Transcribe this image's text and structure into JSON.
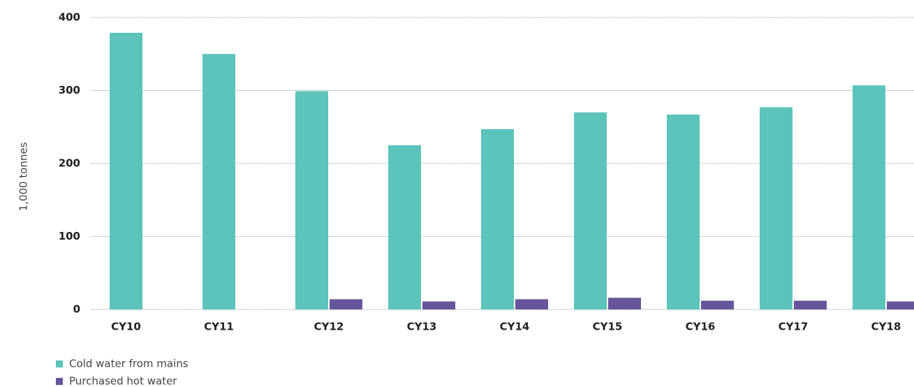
{
  "chart_data": {
    "type": "bar",
    "y_label": "1,000 tonnes",
    "categories": [
      "CY10",
      "CY11",
      "CY12",
      "CY13",
      "CY14",
      "CY15",
      "CY16",
      "CY17",
      "CY18"
    ],
    "series": [
      {
        "name": "Cold water from mains",
        "color": "#5cc4bb",
        "values": [
          379,
          350,
          299,
          225,
          247,
          270,
          267,
          277,
          307
        ]
      },
      {
        "name": "Purchased hot water",
        "color": "#67559b",
        "values": [
          null,
          null,
          14,
          11,
          14,
          16,
          12,
          12,
          11
        ]
      }
    ],
    "ylim": [
      0,
      400
    ],
    "yticks": [
      0,
      100,
      200,
      300,
      400
    ],
    "grid": true,
    "legend": "bottom-left"
  }
}
